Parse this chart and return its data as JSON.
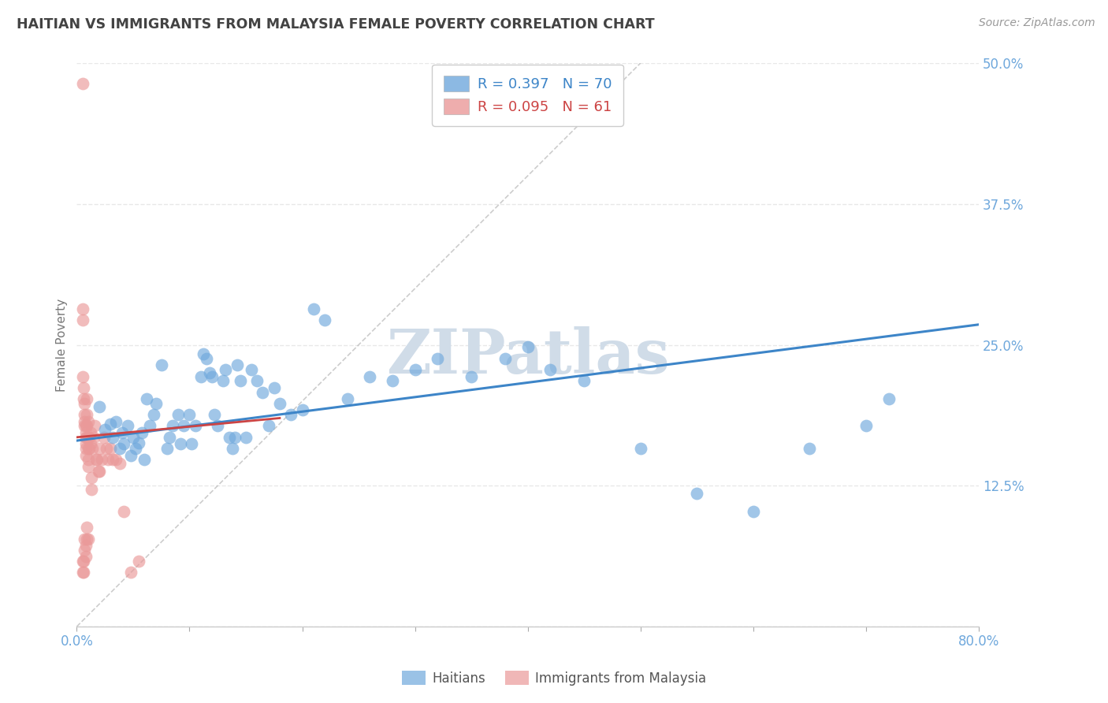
{
  "title": "HAITIAN VS IMMIGRANTS FROM MALAYSIA FEMALE POVERTY CORRELATION CHART",
  "source": "Source: ZipAtlas.com",
  "ylabel": "Female Poverty",
  "xlim": [
    0.0,
    0.8
  ],
  "ylim": [
    0.0,
    0.5
  ],
  "yticks": [
    0.0,
    0.125,
    0.25,
    0.375,
    0.5
  ],
  "xticks": [
    0.0,
    0.1,
    0.2,
    0.3,
    0.4,
    0.5,
    0.6,
    0.7,
    0.8
  ],
  "blue_color": "#6fa8dc",
  "pink_color": "#ea9999",
  "trend_blue_color": "#3d85c8",
  "trend_pink_color": "#cc4444",
  "diagonal_color": "#c0c0c0",
  "title_color": "#434343",
  "axis_label_color": "#777777",
  "tick_label_color": "#6fa8dc",
  "grid_color": "#e8e8e8",
  "watermark_color": "#d0dce8",
  "blue_R": 0.397,
  "blue_N": 70,
  "pink_R": 0.095,
  "pink_N": 61,
  "blue_trend_x0": 0.0,
  "blue_trend_x1": 0.8,
  "blue_trend_y0": 0.165,
  "blue_trend_y1": 0.268,
  "pink_trend_x0": 0.0,
  "pink_trend_x1": 0.18,
  "pink_trend_y0": 0.168,
  "pink_trend_y1": 0.185,
  "blue_points_x": [
    0.02,
    0.025,
    0.03,
    0.032,
    0.035,
    0.038,
    0.04,
    0.042,
    0.045,
    0.048,
    0.05,
    0.052,
    0.055,
    0.058,
    0.06,
    0.062,
    0.065,
    0.068,
    0.07,
    0.075,
    0.08,
    0.082,
    0.085,
    0.09,
    0.092,
    0.095,
    0.1,
    0.102,
    0.105,
    0.11,
    0.112,
    0.115,
    0.118,
    0.12,
    0.122,
    0.125,
    0.13,
    0.132,
    0.135,
    0.138,
    0.14,
    0.142,
    0.145,
    0.15,
    0.155,
    0.16,
    0.165,
    0.17,
    0.175,
    0.18,
    0.19,
    0.2,
    0.21,
    0.22,
    0.24,
    0.26,
    0.28,
    0.3,
    0.32,
    0.35,
    0.38,
    0.4,
    0.42,
    0.45,
    0.5,
    0.55,
    0.6,
    0.65,
    0.7,
    0.72
  ],
  "blue_points_y": [
    0.195,
    0.175,
    0.18,
    0.168,
    0.182,
    0.158,
    0.172,
    0.162,
    0.178,
    0.152,
    0.168,
    0.158,
    0.163,
    0.172,
    0.148,
    0.202,
    0.178,
    0.188,
    0.198,
    0.232,
    0.158,
    0.168,
    0.178,
    0.188,
    0.162,
    0.178,
    0.188,
    0.162,
    0.178,
    0.222,
    0.242,
    0.238,
    0.225,
    0.222,
    0.188,
    0.178,
    0.218,
    0.228,
    0.168,
    0.158,
    0.168,
    0.232,
    0.218,
    0.168,
    0.228,
    0.218,
    0.208,
    0.178,
    0.212,
    0.198,
    0.188,
    0.192,
    0.282,
    0.272,
    0.202,
    0.222,
    0.218,
    0.228,
    0.238,
    0.222,
    0.238,
    0.248,
    0.228,
    0.218,
    0.158,
    0.118,
    0.102,
    0.158,
    0.178,
    0.202
  ],
  "pink_points_x": [
    0.005,
    0.005,
    0.005,
    0.005,
    0.006,
    0.006,
    0.007,
    0.007,
    0.007,
    0.007,
    0.008,
    0.008,
    0.008,
    0.008,
    0.008,
    0.008,
    0.009,
    0.009,
    0.009,
    0.009,
    0.01,
    0.01,
    0.01,
    0.01,
    0.01,
    0.011,
    0.011,
    0.012,
    0.012,
    0.013,
    0.013,
    0.014,
    0.015,
    0.016,
    0.017,
    0.018,
    0.019,
    0.02,
    0.02,
    0.022,
    0.024,
    0.026,
    0.028,
    0.03,
    0.032,
    0.035,
    0.038,
    0.042,
    0.048,
    0.055,
    0.005,
    0.005,
    0.006,
    0.006,
    0.007,
    0.007,
    0.008,
    0.008,
    0.009,
    0.009,
    0.01
  ],
  "pink_points_y": [
    0.482,
    0.272,
    0.282,
    0.222,
    0.212,
    0.202,
    0.198,
    0.188,
    0.182,
    0.178,
    0.178,
    0.172,
    0.168,
    0.162,
    0.158,
    0.152,
    0.202,
    0.188,
    0.178,
    0.168,
    0.158,
    0.148,
    0.142,
    0.182,
    0.168,
    0.168,
    0.158,
    0.172,
    0.162,
    0.122,
    0.132,
    0.158,
    0.168,
    0.178,
    0.148,
    0.148,
    0.138,
    0.138,
    0.158,
    0.148,
    0.168,
    0.158,
    0.148,
    0.158,
    0.148,
    0.148,
    0.145,
    0.102,
    0.048,
    0.058,
    0.048,
    0.058,
    0.048,
    0.058,
    0.068,
    0.078,
    0.062,
    0.072,
    0.078,
    0.088,
    0.078
  ]
}
